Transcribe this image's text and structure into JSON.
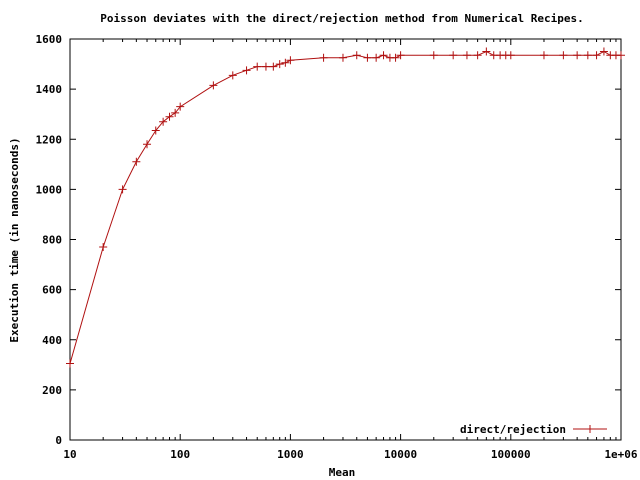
{
  "chart_data": {
    "type": "line",
    "title": "Poisson deviates with the direct/rejection method from Numerical Recipes.",
    "xlabel": "Mean",
    "ylabel": "Execution time (in nanoseconds)",
    "x_scale": "log",
    "xlim": [
      10,
      1000000
    ],
    "ylim": [
      0,
      1600
    ],
    "x_ticks": [
      10,
      100,
      1000,
      10000,
      100000,
      1000000
    ],
    "x_tick_labels": [
      "10",
      "100",
      "1000",
      "10000",
      "100000",
      "1e+06"
    ],
    "y_ticks": [
      0,
      200,
      400,
      600,
      800,
      1000,
      1200,
      1400,
      1600
    ],
    "y_tick_labels": [
      "0",
      "200",
      "400",
      "600",
      "800",
      "1000",
      "1200",
      "1400",
      "1600"
    ],
    "grid": false,
    "legend_position": "bottom-right",
    "color": "#b01010",
    "marker": "plus",
    "series": [
      {
        "name": "direct/rejection",
        "x": [
          10,
          20,
          30,
          40,
          50,
          60,
          70,
          80,
          90,
          100,
          200,
          300,
          400,
          500,
          600,
          700,
          800,
          900,
          1000,
          2000,
          3000,
          4000,
          5000,
          6000,
          7000,
          8000,
          9000,
          10000,
          20000,
          30000,
          40000,
          50000,
          60000,
          70000,
          80000,
          90000,
          100000,
          200000,
          300000,
          400000,
          500000,
          600000,
          700000,
          800000,
          900000,
          1000000
        ],
        "y": [
          305,
          770,
          1000,
          1110,
          1180,
          1235,
          1270,
          1290,
          1305,
          1330,
          1415,
          1455,
          1475,
          1490,
          1490,
          1490,
          1500,
          1505,
          1515,
          1525,
          1525,
          1535,
          1525,
          1525,
          1535,
          1525,
          1525,
          1535,
          1535,
          1535,
          1535,
          1535,
          1550,
          1535,
          1535,
          1535,
          1535,
          1535,
          1535,
          1535,
          1535,
          1535,
          1550,
          1535,
          1535,
          1535
        ]
      }
    ]
  }
}
